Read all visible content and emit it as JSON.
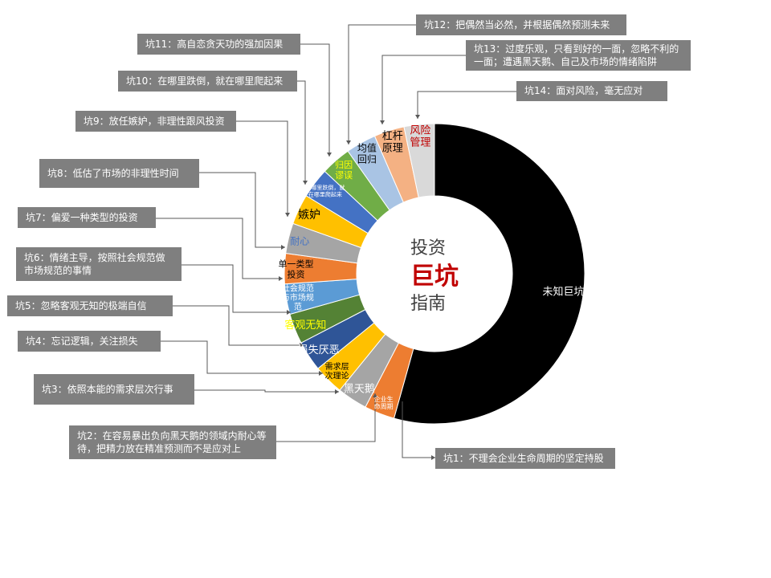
{
  "center_title": {
    "line1": "投资",
    "line2": "巨坑",
    "line3": "指南"
  },
  "chart_data": {
    "type": "pie",
    "variant": "donut",
    "title": "投资巨坑指南",
    "slices": [
      {
        "label": "未知巨坑",
        "value": 50,
        "color": "#000000",
        "label_color": "#ffffff"
      },
      {
        "label": "企业生命周期",
        "value": 3,
        "color": "#ed7d31",
        "label_color": "#ffffff"
      },
      {
        "label": "黑天鹅",
        "value": 3,
        "color": "#a5a5a5",
        "label_color": "#ffffff"
      },
      {
        "label": "需求层次理论",
        "value": 3,
        "color": "#ffc000",
        "label_color": "#000000"
      },
      {
        "label": "损失厌恶",
        "value": 3,
        "color": "#2f5597",
        "label_color": "#ffffff"
      },
      {
        "label": "客观无知",
        "value": 3,
        "color": "#548235",
        "label_color": "#ffff00"
      },
      {
        "label": "社会规范与市场规范",
        "value": 3,
        "color": "#5b9bd5",
        "label_color": "#ffffff"
      },
      {
        "label": "单一类型投资",
        "value": 3,
        "color": "#ed7d31",
        "label_color": "#000000"
      },
      {
        "label": "耐心",
        "value": 3,
        "color": "#a5a5a5",
        "label_color": "#4472c4"
      },
      {
        "label": "嫉妒",
        "value": 3,
        "color": "#ffc000",
        "label_color": "#000000"
      },
      {
        "label": "在哪里跌倒，就在哪里爬起来",
        "value": 3,
        "color": "#4472c4",
        "label_color": "#ffffff"
      },
      {
        "label": "归因谬误",
        "value": 3,
        "color": "#70ad47",
        "label_color": "#ffff00"
      },
      {
        "label": "均值回归",
        "value": 3,
        "color": "#a9c4e4",
        "label_color": "#000000"
      },
      {
        "label": "杠杆原理",
        "value": 3,
        "color": "#f4b183",
        "label_color": "#000000"
      },
      {
        "label": "风险管理",
        "value": 3,
        "color": "#d9d9d9",
        "label_color": "#c00000"
      }
    ]
  },
  "callouts": [
    {
      "id": "1",
      "prefix": "坑1",
      "text": "：不理会企业生命周期的坚定持股"
    },
    {
      "id": "2",
      "prefix": "坑2",
      "text": "：在容易暴出负向黑天鹅的领域内耐心等待，把精力放在精准预测而不是应对上"
    },
    {
      "id": "3",
      "prefix": "坑3",
      "text": "：依照本能的需求层次行事"
    },
    {
      "id": "4",
      "prefix": "坑4",
      "text": "：忘记逻辑，关注损失"
    },
    {
      "id": "5",
      "prefix": "坑5",
      "text": "：忽略客观无知的极端自信"
    },
    {
      "id": "6",
      "prefix": "坑6",
      "text": "：情绪主导，按照社会规范做市场规范的事情"
    },
    {
      "id": "7",
      "prefix": "坑7",
      "text": "：偏爱一种类型的投资"
    },
    {
      "id": "8",
      "prefix": "坑8",
      "text": "：低估了市场的非理性时间"
    },
    {
      "id": "9",
      "prefix": "坑9",
      "text": "：放任嫉妒，非理性跟风投资"
    },
    {
      "id": "10",
      "prefix": "坑10",
      "text": "：在哪里跌倒，就在哪里爬起来"
    },
    {
      "id": "11",
      "prefix": "坑11",
      "text": "：高自恋贪天功的强加因果"
    },
    {
      "id": "12",
      "prefix": "坑12",
      "text": "：把偶然当必然，并根据偶然预测未来"
    },
    {
      "id": "13",
      "prefix": "坑13",
      "text": "：过度乐观，只看到好的一面，忽略不利的一面；遭遇黑天鹅、自己及市场的情绪陷阱"
    },
    {
      "id": "14",
      "prefix": "坑14",
      "text": "：面对风险，毫无应对"
    }
  ]
}
